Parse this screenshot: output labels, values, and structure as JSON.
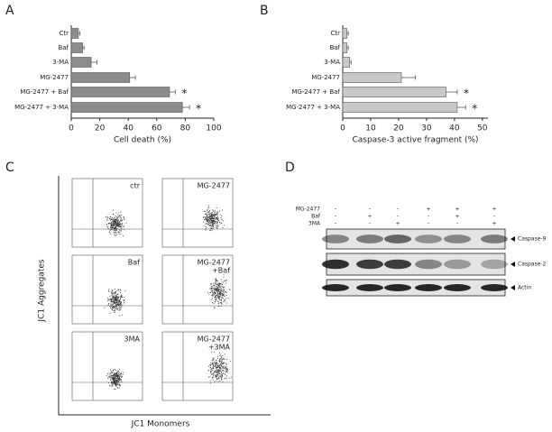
{
  "chart_data": [
    {
      "type": "hbar",
      "panel": "A",
      "x_label": "Cell death (%)",
      "categories": [
        "Ctr",
        "Baf",
        "3-MA",
        "MG-2477",
        "MG-2477 + Baf",
        "MG-2477 + 3-MA"
      ],
      "values": [
        5,
        8,
        14,
        41,
        69,
        78
      ],
      "errors": [
        1,
        1,
        4,
        4,
        4,
        5
      ],
      "significance": [
        null,
        null,
        null,
        null,
        "*",
        "*"
      ],
      "color": "#8c8c8c",
      "xlim": [
        0,
        100
      ],
      "xticks": [
        0,
        20,
        40,
        60,
        80,
        100
      ]
    },
    {
      "type": "hbar",
      "panel": "B",
      "x_label": "Caspase-3 active fragment (%)",
      "categories": [
        "Ctr",
        "Baf",
        "3-MA",
        "MG-2477",
        "MG-2477 + Baf",
        "MG-2477 + 3-MA"
      ],
      "values": [
        1.5,
        1.5,
        2.5,
        21,
        37,
        41
      ],
      "errors": [
        0.5,
        0.5,
        0.5,
        5,
        4,
        3
      ],
      "significance": [
        null,
        null,
        null,
        null,
        "*",
        "*"
      ],
      "color": "#c8c8c8",
      "xlim": [
        0,
        52
      ],
      "xticks": [
        0,
        10,
        20,
        30,
        40,
        50
      ]
    }
  ],
  "flow_panel": {
    "panel": "C",
    "y_label": "JC1 Aggregates",
    "x_label": "JC1 Monomers",
    "plots": [
      [
        "ctr"
      ],
      [
        "MG-2477"
      ],
      [
        "Baf"
      ],
      [
        "MG-2477",
        "+Baf"
      ],
      [
        "3MA"
      ],
      [
        "MG-2477",
        "+3MA"
      ]
    ]
  },
  "blot_panel": {
    "panel": "D",
    "treatments": [
      {
        "name": "MG-2477",
        "signs": [
          "-",
          "-",
          "-",
          "+",
          "+",
          "+"
        ]
      },
      {
        "name": "Baf",
        "signs": [
          "-",
          "+",
          "-",
          "-",
          "+",
          "-"
        ]
      },
      {
        "name": "3MA",
        "signs": [
          "-",
          "-",
          "+",
          "-",
          "-",
          "+"
        ]
      }
    ],
    "bands": [
      "Caspase-9",
      "Caspase-2",
      "Actin"
    ]
  }
}
